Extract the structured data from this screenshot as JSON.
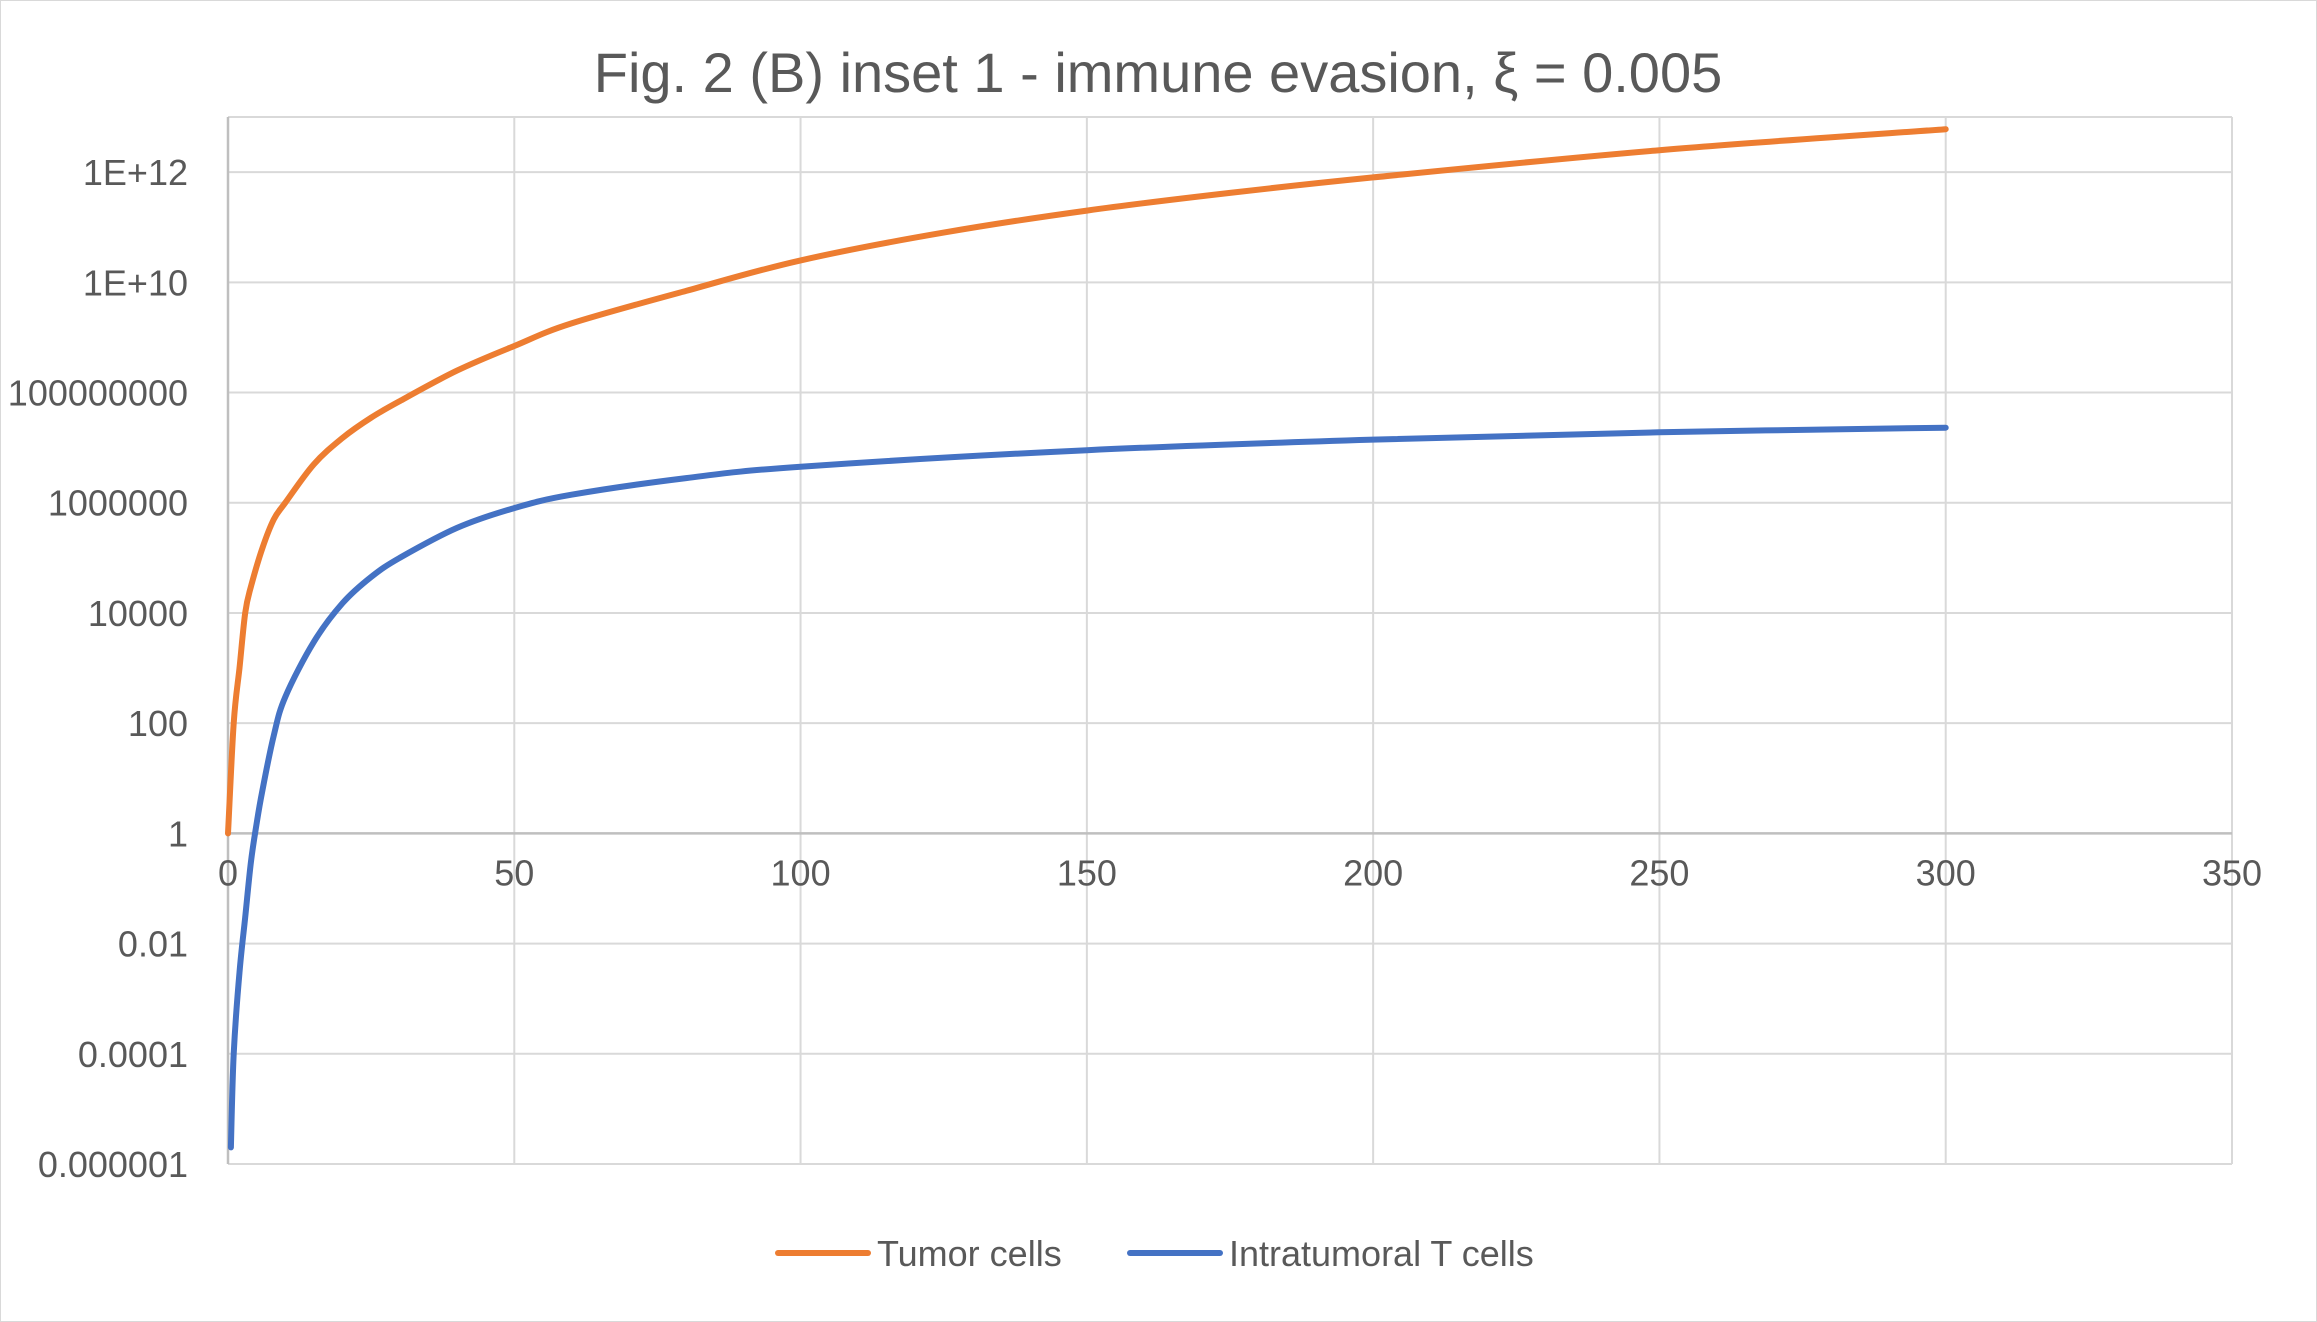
{
  "chart_data": {
    "type": "line",
    "title": "Fig. 2 (B) inset 1 - immune evasion, ξ = 0.005",
    "xlabel": "",
    "ylabel": "",
    "x_scale": "linear",
    "y_scale": "log",
    "xlim": [
      0,
      350
    ],
    "ylim": [
      1e-06,
      10000000000000
    ],
    "x_ticks": [
      0,
      50,
      100,
      150,
      200,
      250,
      300,
      350
    ],
    "x_tick_labels": [
      "0",
      "50",
      "100",
      "150",
      "200",
      "250",
      "300",
      "350"
    ],
    "y_ticks": [
      1e-06,
      0.0001,
      0.01,
      1,
      100,
      10000,
      1000000,
      100000000,
      10000000000,
      1000000000000
    ],
    "y_tick_labels": [
      "0.000001",
      "0.0001",
      "0.01",
      "1",
      "100",
      "10000",
      "1000000",
      "100000000",
      "1E+10",
      "1E+12"
    ],
    "grid": true,
    "x_axis_crosses_at": 1,
    "legend_position": "bottom",
    "series": [
      {
        "name": "Tumor cells",
        "color": "#ed7d31",
        "x": [
          0,
          1,
          2,
          3,
          4,
          6,
          8,
          10,
          15,
          20,
          25,
          30,
          40,
          50,
          60,
          80,
          100,
          125,
          150,
          175,
          200,
          250,
          300
        ],
        "y": [
          1,
          100,
          1000,
          10000,
          30000,
          150000,
          500000,
          1000000,
          5000000,
          15000000,
          35000000,
          70000000,
          250000000,
          700000000,
          1800000000,
          7000000000,
          25000000000,
          80000000000,
          200000000000,
          420000000000,
          800000000000,
          2500000000000,
          6000000000000
        ]
      },
      {
        "name": "Intratumoral T cells",
        "color": "#4472c4",
        "x": [
          0.5,
          1,
          2,
          3,
          4,
          5,
          6,
          8,
          10,
          15,
          20,
          25,
          30,
          40,
          50,
          60,
          80,
          100,
          150,
          200,
          250,
          300
        ],
        "y": [
          2e-06,
          0.0001,
          0.003,
          0.03,
          0.3,
          1.5,
          6,
          60,
          300,
          3000,
          15000,
          45000,
          100000,
          350000,
          800000,
          1400000,
          2800000,
          4500000,
          9000000,
          14000000,
          19000000,
          23000000
        ]
      }
    ]
  }
}
